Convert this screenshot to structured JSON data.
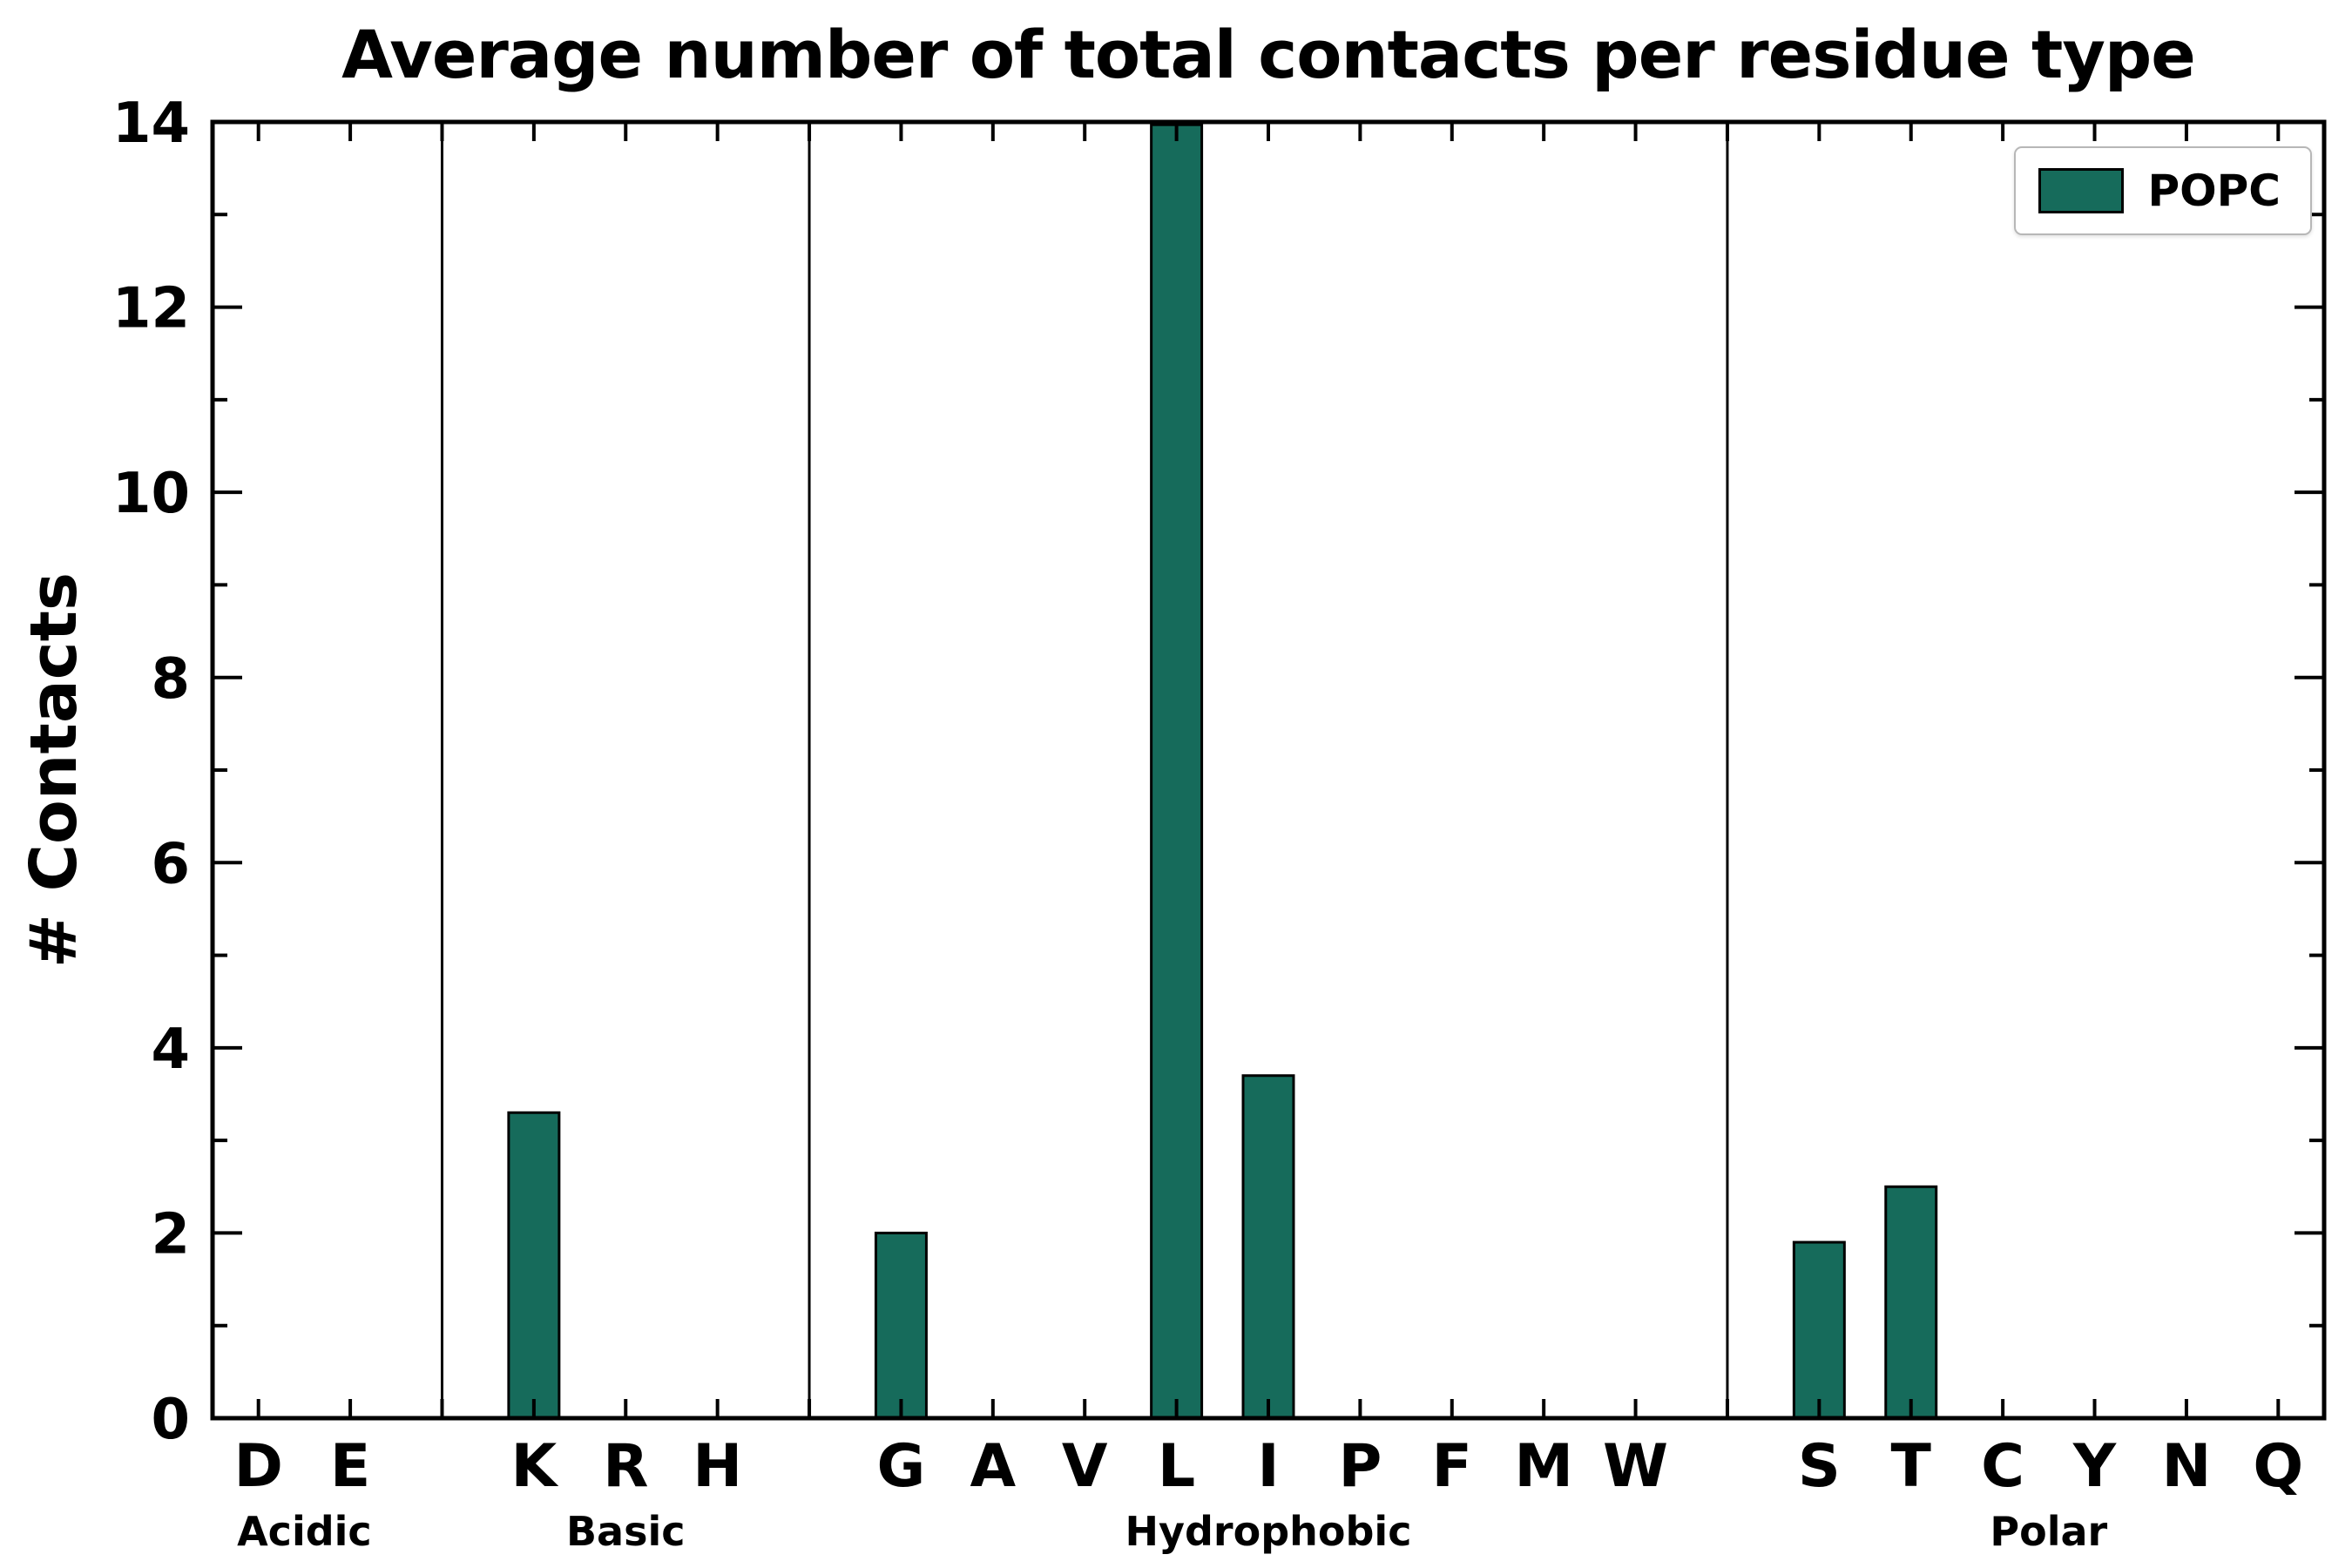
{
  "chart_data": {
    "type": "bar",
    "title": "Average number of total contacts per residue type",
    "xlabel": "",
    "ylabel": "# Contacts",
    "ylim": [
      0,
      14
    ],
    "yticks_major": [
      0,
      2,
      4,
      6,
      8,
      10,
      12,
      14
    ],
    "yticks_minor": [
      1,
      3,
      5,
      7,
      9,
      11,
      13
    ],
    "grid": false,
    "legend": {
      "label": "POPC",
      "position": "upper right"
    },
    "bar_color": "#166b5b",
    "bar_edge_color": "#000000",
    "categories": [
      "D",
      "E",
      "K",
      "R",
      "H",
      "G",
      "A",
      "V",
      "L",
      "I",
      "P",
      "F",
      "M",
      "W",
      "S",
      "T",
      "C",
      "Y",
      "N",
      "Q"
    ],
    "values": [
      0,
      0,
      3.3,
      0,
      0,
      2.0,
      0,
      0,
      13.97,
      3.7,
      0,
      0,
      0,
      0,
      1.9,
      2.5,
      0,
      0,
      0,
      0
    ],
    "groups": [
      {
        "label": "Acidic",
        "residues": [
          "D",
          "E"
        ],
        "values": [
          0,
          0
        ]
      },
      {
        "label": "Basic",
        "residues": [
          "K",
          "R",
          "H"
        ],
        "values": [
          3.3,
          0,
          0
        ]
      },
      {
        "label": "Hydrophobic",
        "residues": [
          "G",
          "A",
          "V",
          "L",
          "I",
          "P",
          "F",
          "M",
          "W"
        ],
        "values": [
          2.0,
          0,
          0,
          13.97,
          3.7,
          0,
          0,
          0,
          0
        ]
      },
      {
        "label": "Polar",
        "residues": [
          "S",
          "T",
          "C",
          "Y",
          "N",
          "Q"
        ],
        "values": [
          1.9,
          2.5,
          0,
          0,
          0,
          0
        ]
      }
    ]
  }
}
